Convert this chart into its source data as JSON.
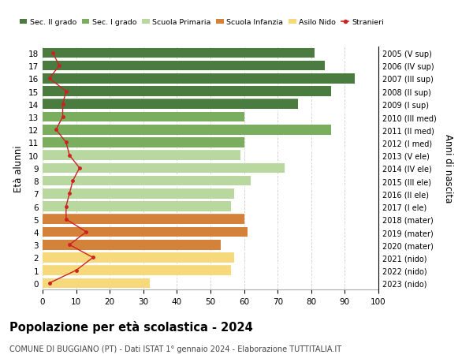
{
  "ages": [
    18,
    17,
    16,
    15,
    14,
    13,
    12,
    11,
    10,
    9,
    8,
    7,
    6,
    5,
    4,
    3,
    2,
    1,
    0
  ],
  "bar_values": [
    81,
    84,
    93,
    86,
    76,
    60,
    86,
    60,
    59,
    72,
    62,
    57,
    56,
    60,
    61,
    53,
    57,
    56,
    32
  ],
  "stranieri_values": [
    3,
    5,
    2,
    7,
    6,
    6,
    4,
    7,
    8,
    11,
    9,
    8,
    7,
    7,
    13,
    8,
    15,
    10,
    2
  ],
  "right_labels": [
    "2005 (V sup)",
    "2006 (IV sup)",
    "2007 (III sup)",
    "2008 (II sup)",
    "2009 (I sup)",
    "2010 (III med)",
    "2011 (II med)",
    "2012 (I med)",
    "2013 (V ele)",
    "2014 (IV ele)",
    "2015 (III ele)",
    "2016 (II ele)",
    "2017 (I ele)",
    "2018 (mater)",
    "2019 (mater)",
    "2020 (mater)",
    "2021 (nido)",
    "2022 (nido)",
    "2023 (nido)"
  ],
  "bar_colors": [
    "#4a7c3f",
    "#4a7c3f",
    "#4a7c3f",
    "#4a7c3f",
    "#4a7c3f",
    "#7aad5e",
    "#7aad5e",
    "#7aad5e",
    "#b8d8a0",
    "#b8d8a0",
    "#b8d8a0",
    "#b8d8a0",
    "#b8d8a0",
    "#d4813a",
    "#d4813a",
    "#d4813a",
    "#f5d97a",
    "#f5d97a",
    "#f5d97a"
  ],
  "legend_labels": [
    "Sec. II grado",
    "Sec. I grado",
    "Scuola Primaria",
    "Scuola Infanzia",
    "Asilo Nido",
    "Stranieri"
  ],
  "legend_colors": [
    "#4a7c3f",
    "#7aad5e",
    "#b8d8a0",
    "#d4813a",
    "#f5d97a",
    "#cc2222"
  ],
  "title": "Popolazione per età scolastica - 2024",
  "subtitle": "COMUNE DI BUGGIANO (PT) - Dati ISTAT 1° gennaio 2024 - Elaborazione TUTTITALIA.IT",
  "ylabel_left": "Età alunni",
  "ylabel_right": "Anni di nascita",
  "xlim": [
    0,
    100
  ],
  "xticks": [
    0,
    10,
    20,
    30,
    40,
    50,
    60,
    70,
    80,
    90,
    100
  ],
  "stranieri_color": "#cc2222",
  "bar_height": 0.78,
  "bg_color": "#ffffff",
  "grid_color": "#cccccc"
}
